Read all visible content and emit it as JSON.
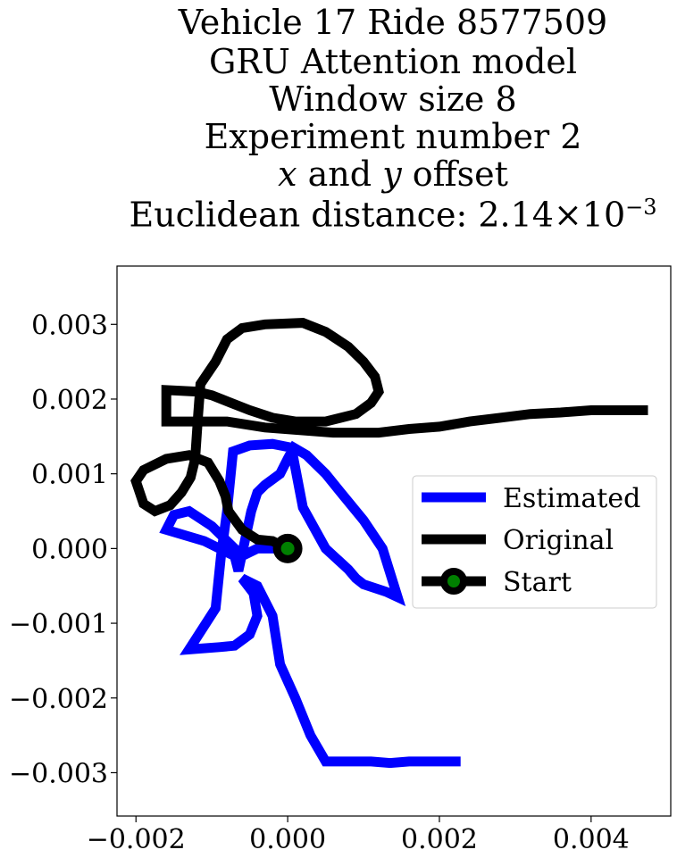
{
  "chart_data": {
    "type": "line",
    "title_lines": [
      "Vehicle 17 Ride 8577509",
      "GRU Attention model",
      "Window size 8",
      "Experiment number 2",
      "x and y offset",
      "Euclidean distance: 2.14×10⁻³"
    ],
    "title_parts": {
      "offset_x": "x",
      "offset_and": "and",
      "offset_y": "y",
      "offset_word": "offset",
      "dist_prefix": "Euclidean distance: ",
      "dist_mantissa": "2.14",
      "dist_times": "×",
      "dist_base": "10",
      "dist_exp": "−3"
    },
    "xlim": [
      -0.00225,
      0.00505
    ],
    "ylim": [
      -0.00358,
      0.00378
    ],
    "xticks": [
      -0.002,
      0.0,
      0.002,
      0.004
    ],
    "xtick_labels": [
      "−0.002",
      "0.000",
      "0.002",
      "0.004"
    ],
    "yticks": [
      -0.003,
      -0.002,
      -0.001,
      0.0,
      0.001,
      0.002,
      0.003
    ],
    "ytick_labels": [
      "−0.003",
      "−0.002",
      "−0.001",
      "0.000",
      "0.001",
      "0.002",
      "0.003"
    ],
    "grid": false,
    "legend_position": "center-right",
    "series": [
      {
        "name": "Estimated",
        "color": "#0000ff",
        "points": [
          [
            0.0,
            0.0
          ],
          [
            -0.0004,
            0.0
          ],
          [
            -0.0006,
            -0.0001
          ],
          [
            -0.0008,
            0.0001
          ],
          [
            -0.001,
            0.0003
          ],
          [
            -0.0013,
            0.0005
          ],
          [
            -0.0015,
            0.00045
          ],
          [
            -0.0016,
            0.00025
          ],
          [
            -0.0011,
            0.0001
          ],
          [
            -0.0007,
            -0.0001
          ],
          [
            -0.00065,
            -0.0003
          ],
          [
            -0.00048,
            0.0005
          ],
          [
            -0.0004,
            0.00075
          ],
          [
            -0.0003,
            0.00085
          ],
          [
            -0.0001,
            0.001
          ],
          [
            0.0,
            0.0012
          ],
          [
            8e-05,
            0.00135
          ],
          [
            0.00025,
            0.00125
          ],
          [
            0.0005,
            0.001
          ],
          [
            0.0007,
            0.00075
          ],
          [
            0.001,
            0.00038
          ],
          [
            0.00125,
            0.0
          ],
          [
            0.00145,
            -0.00065
          ],
          [
            0.0013,
            -0.00058
          ],
          [
            0.001,
            -0.00048
          ],
          [
            0.0009,
            -0.0004
          ],
          [
            0.0008,
            -0.00028
          ],
          [
            0.0005,
            0.0
          ],
          [
            0.0002,
            0.00055
          ],
          [
            5e-05,
            0.00135
          ],
          [
            -0.0002,
            0.0014
          ],
          [
            -0.0005,
            0.00138
          ],
          [
            -0.00072,
            0.0013
          ],
          [
            -0.0008,
            0.0005
          ],
          [
            -0.00088,
            -0.0001
          ],
          [
            -0.00095,
            -0.0008
          ],
          [
            -0.0013,
            -0.00135
          ],
          [
            -0.0009,
            -0.00132
          ],
          [
            -0.0007,
            -0.0013
          ],
          [
            -0.0005,
            -0.00115
          ],
          [
            -0.0004,
            -0.0009
          ],
          [
            -0.00045,
            -0.0006
          ],
          [
            -0.0006,
            -0.0004
          ],
          [
            -0.0004,
            -0.0005
          ],
          [
            -0.0002,
            -0.0009
          ],
          [
            -0.0001,
            -0.00155
          ],
          [
            0.0001,
            -0.002
          ],
          [
            0.0003,
            -0.0025
          ],
          [
            0.0005,
            -0.00285
          ],
          [
            0.0008,
            -0.00285
          ],
          [
            0.0011,
            -0.00285
          ],
          [
            0.00135,
            -0.00287
          ],
          [
            0.0016,
            -0.00285
          ],
          [
            0.0019,
            -0.00285
          ],
          [
            0.00228,
            -0.00285
          ]
        ]
      },
      {
        "name": "Original",
        "color": "#000000",
        "points": [
          [
            0.0,
            0.0
          ],
          [
            -0.0002,
            0.0001
          ],
          [
            -0.0004,
            0.00012
          ],
          [
            -0.0006,
            0.00025
          ],
          [
            -0.00078,
            0.0005
          ],
          [
            -0.00082,
            0.0007
          ],
          [
            -0.0009,
            0.0009
          ],
          [
            -0.00105,
            0.00115
          ],
          [
            -0.0013,
            0.00125
          ],
          [
            -0.0016,
            0.0012
          ],
          [
            -0.0019,
            0.00105
          ],
          [
            -0.002,
            0.0009
          ],
          [
            -0.0019,
            0.0006
          ],
          [
            -0.00175,
            0.0005
          ],
          [
            -0.00155,
            0.00058
          ],
          [
            -0.0014,
            0.00075
          ],
          [
            -0.00128,
            0.00095
          ],
          [
            -0.00122,
            0.0012
          ],
          [
            -0.00118,
            0.0018
          ],
          [
            -0.00115,
            0.0022
          ],
          [
            -0.00095,
            0.0025
          ],
          [
            -0.0008,
            0.0028
          ],
          [
            -0.0006,
            0.00295
          ],
          [
            -0.0003,
            0.003
          ],
          [
            0.0002,
            0.00302
          ],
          [
            0.0005,
            0.0029
          ],
          [
            0.0008,
            0.0027
          ],
          [
            0.001,
            0.0025
          ],
          [
            0.00115,
            0.0023
          ],
          [
            0.0012,
            0.0021
          ],
          [
            0.0011,
            0.00195
          ],
          [
            0.0009,
            0.0018
          ],
          [
            0.0005,
            0.0017
          ],
          [
            0.0001,
            0.0017
          ],
          [
            -0.0002,
            0.00175
          ],
          [
            -0.0005,
            0.00185
          ],
          [
            -0.001,
            0.00205
          ],
          [
            -0.0012,
            0.0021
          ],
          [
            -0.0016,
            0.00212
          ],
          [
            -0.0016,
            0.0019
          ],
          [
            -0.0016,
            0.0017
          ],
          [
            -0.0012,
            0.0017
          ],
          [
            -0.0008,
            0.0017
          ],
          [
            -0.0003,
            0.00162
          ],
          [
            0.0006,
            0.00155
          ],
          [
            0.0012,
            0.00155
          ],
          [
            0.0016,
            0.0016
          ],
          [
            0.002,
            0.00163
          ],
          [
            0.0024,
            0.0017
          ],
          [
            0.0028,
            0.00175
          ],
          [
            0.0032,
            0.0018
          ],
          [
            0.0036,
            0.00182
          ],
          [
            0.004,
            0.00185
          ],
          [
            0.00475,
            0.00185
          ]
        ]
      }
    ],
    "start_point": {
      "name": "Start",
      "x": 0.0,
      "y": 0.0,
      "color": "#008000",
      "edge_color": "#000000"
    }
  }
}
